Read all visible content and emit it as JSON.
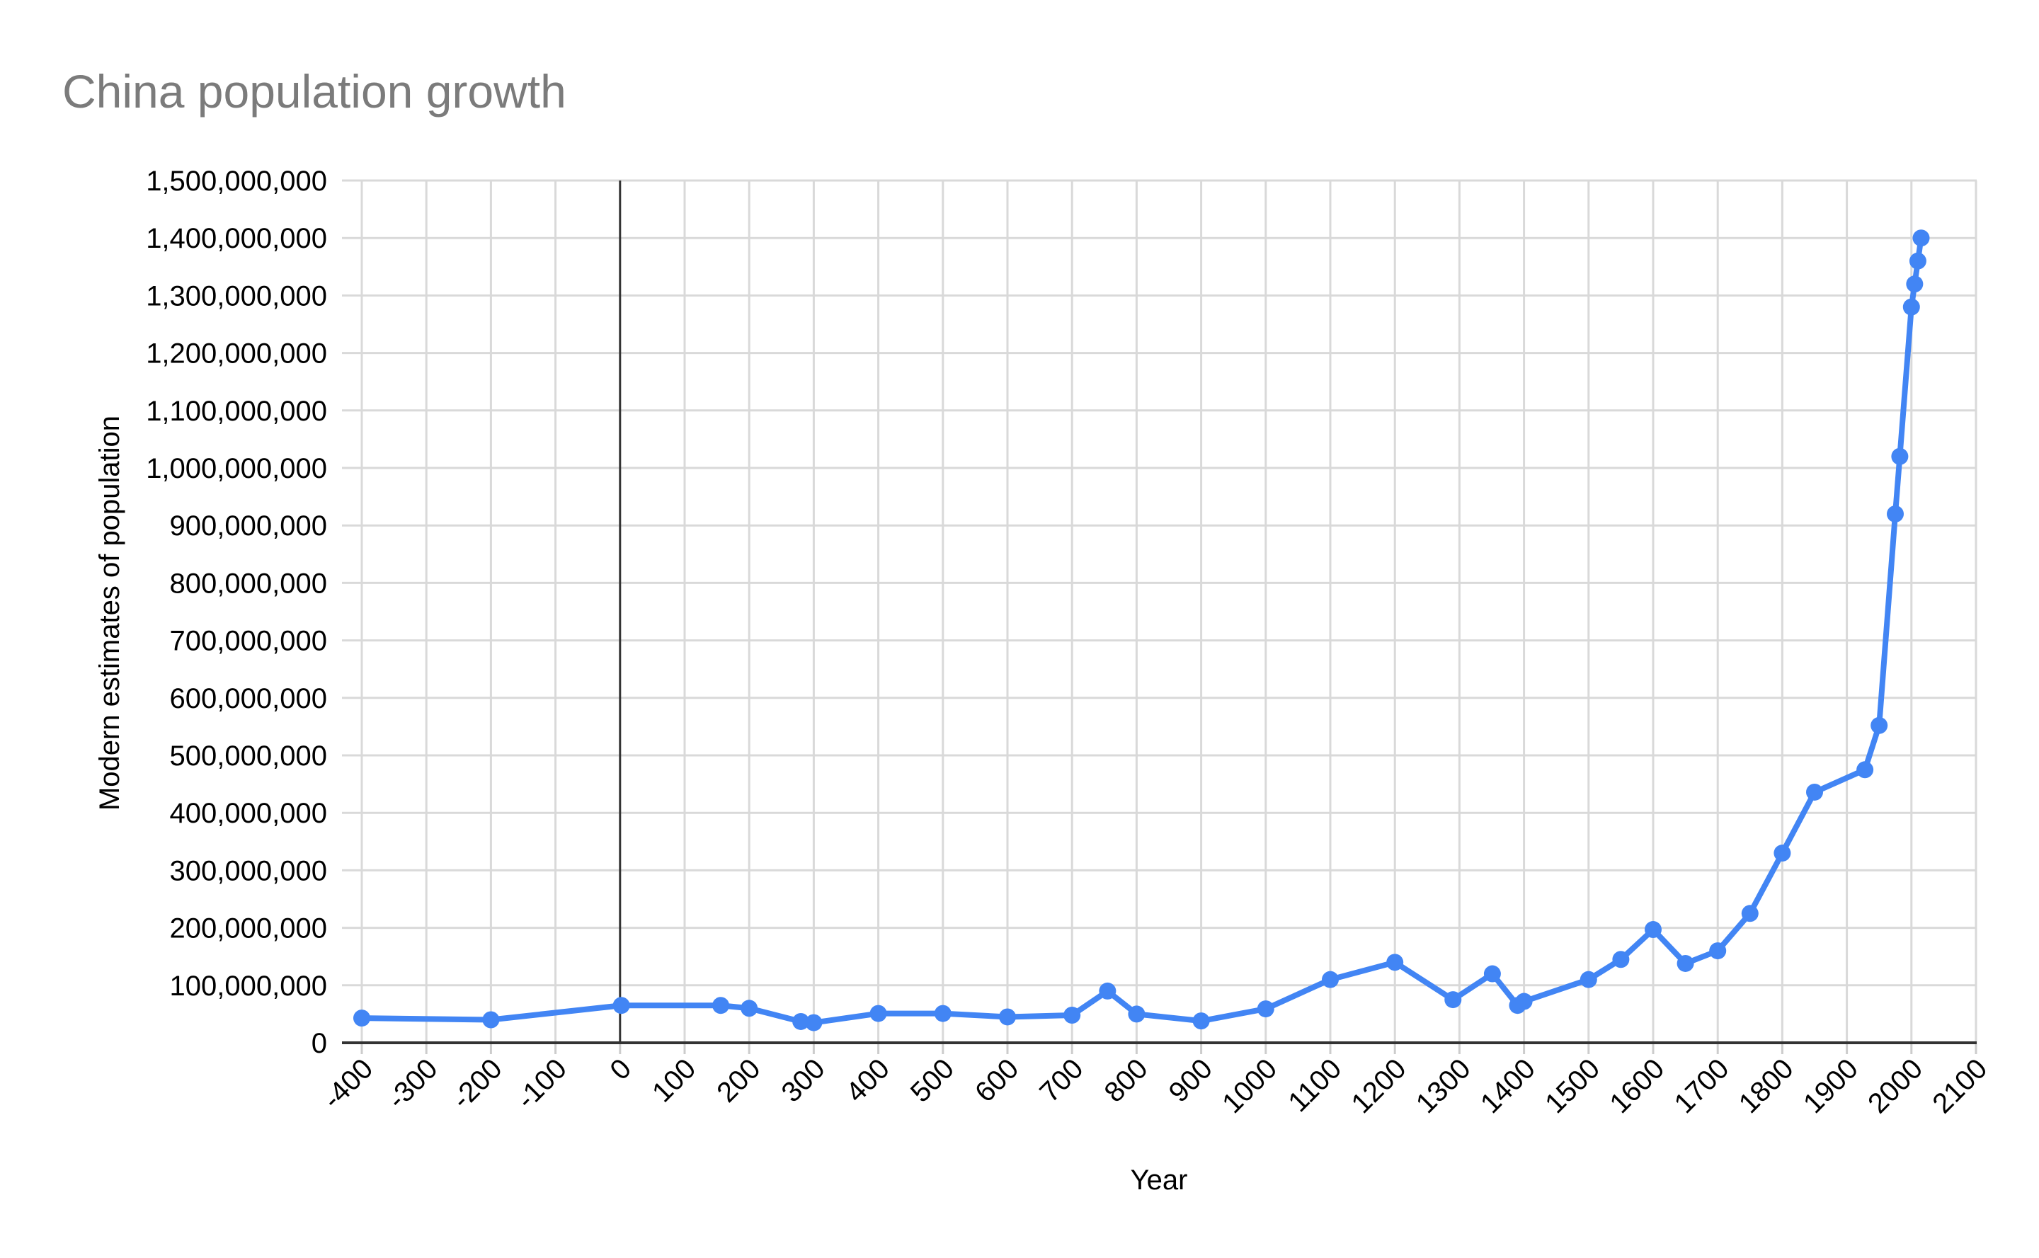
{
  "chart_data": {
    "type": "line",
    "title": "China population growth",
    "xlabel": "Year",
    "ylabel": "Modern estimates of population",
    "xlim": [
      -431,
      2100
    ],
    "ylim": [
      0,
      1500000000
    ],
    "grid": true,
    "legend_position": "none",
    "x_ticks": [
      -400,
      -300,
      -200,
      -100,
      0,
      100,
      200,
      300,
      400,
      500,
      600,
      700,
      800,
      900,
      1000,
      1100,
      1200,
      1300,
      1400,
      1500,
      1600,
      1700,
      1800,
      1900,
      2000,
      2100
    ],
    "x_tick_labels": [
      "-400",
      "-300",
      "-200",
      "-100",
      "0",
      "100",
      "200",
      "300",
      "400",
      "500",
      "600",
      "700",
      "800",
      "900",
      "1000",
      "1100",
      "1200",
      "1300",
      "1400",
      "1500",
      "1600",
      "1700",
      "1800",
      "1900",
      "2000",
      "2100"
    ],
    "y_ticks": [
      0,
      100000000,
      200000000,
      300000000,
      400000000,
      500000000,
      600000000,
      700000000,
      800000000,
      900000000,
      1000000000,
      1100000000,
      1200000000,
      1300000000,
      1400000000,
      1500000000
    ],
    "y_tick_labels": [
      "0",
      "100,000,000",
      "200,000,000",
      "300,000,000",
      "400,000,000",
      "500,000,000",
      "600,000,000",
      "700,000,000",
      "800,000,000",
      "900,000,000",
      "1,000,000,000",
      "1,100,000,000",
      "1,200,000,000",
      "1,300,000,000",
      "1,400,000,000",
      "1,500,000,000"
    ],
    "series": [
      {
        "name": "Modern estimates of population",
        "points": [
          [
            -400,
            43000000
          ],
          [
            -200,
            40000000
          ],
          [
            2,
            65000000
          ],
          [
            156,
            65000000
          ],
          [
            200,
            60000000
          ],
          [
            280,
            37000000
          ],
          [
            300,
            35000000
          ],
          [
            400,
            51000000
          ],
          [
            500,
            51000000
          ],
          [
            600,
            45000000
          ],
          [
            700,
            48000000
          ],
          [
            755,
            90000000
          ],
          [
            800,
            50000000
          ],
          [
            900,
            38000000
          ],
          [
            1000,
            59000000
          ],
          [
            1100,
            110000000
          ],
          [
            1200,
            140000000
          ],
          [
            1290,
            75000000
          ],
          [
            1351,
            120000000
          ],
          [
            1390,
            65000000
          ],
          [
            1400,
            72000000
          ],
          [
            1500,
            110000000
          ],
          [
            1550,
            145000000
          ],
          [
            1600,
            197000000
          ],
          [
            1650,
            138000000
          ],
          [
            1700,
            160000000
          ],
          [
            1750,
            225000000
          ],
          [
            1800,
            330000000
          ],
          [
            1850,
            436000000
          ],
          [
            1928,
            475000000
          ],
          [
            1950,
            552000000
          ],
          [
            1975,
            920000000
          ],
          [
            1982,
            1020000000
          ],
          [
            2000,
            1280000000
          ],
          [
            2005,
            1320000000
          ],
          [
            2010,
            1360000000
          ],
          [
            2015,
            1400000000
          ]
        ]
      }
    ]
  },
  "colors": {
    "series": "#4285F4",
    "gridline": "#d9d9d9",
    "axis_line": "#333333",
    "tick": "#cccccc",
    "title_text": "#7b7b7b",
    "label_text": "#000000"
  }
}
